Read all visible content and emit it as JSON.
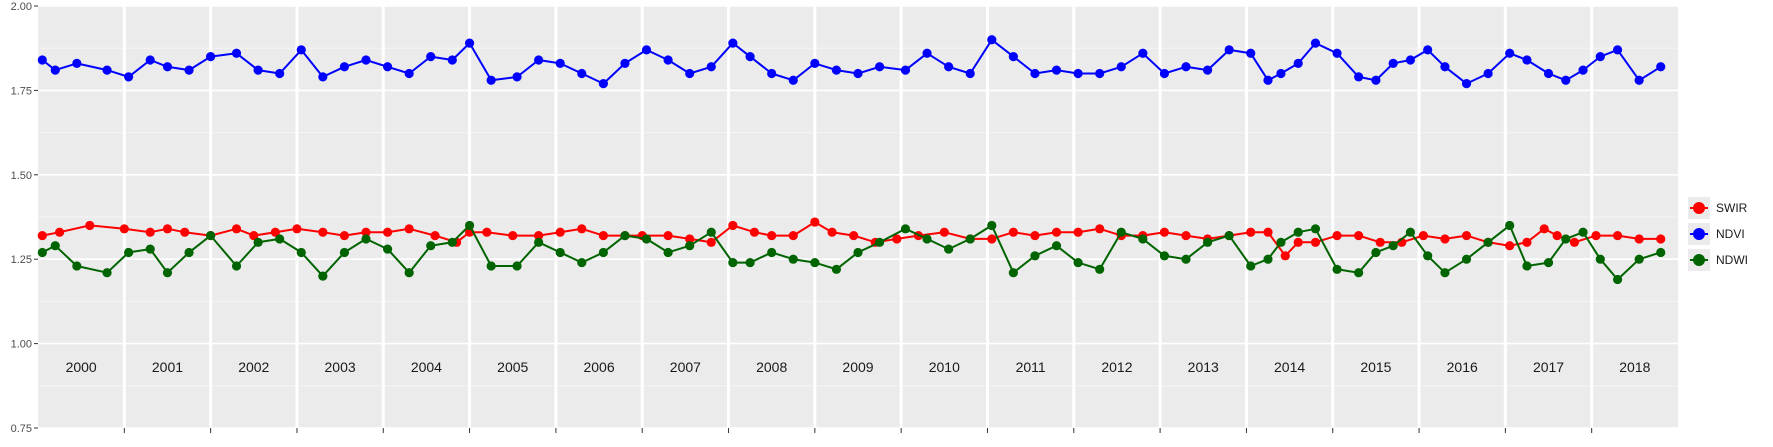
{
  "chart_data": {
    "type": "line",
    "title": "",
    "xlabel": "",
    "ylabel": "",
    "ylim": [
      0.75,
      2.0
    ],
    "yticks": [
      "0.75",
      "1.00",
      "1.25",
      "1.50",
      "1.75",
      "2.00"
    ],
    "ytick_values": [
      0.75,
      1.0,
      1.25,
      1.5,
      1.75,
      2.0
    ],
    "x_unit": "decimal year",
    "xlim": [
      2000.0,
      2019.0
    ],
    "year_panels": [
      "2000",
      "2001",
      "2002",
      "2003",
      "2004",
      "2005",
      "2006",
      "2007",
      "2008",
      "2009",
      "2010",
      "2011",
      "2012",
      "2013",
      "2014",
      "2015",
      "2016",
      "2017",
      "2018"
    ],
    "grid": true,
    "legend_position": "right",
    "series": [
      {
        "name": "SWIR",
        "color": "#ff0000",
        "x": [
          2000.05,
          2000.25,
          2000.6,
          2001.0,
          2001.3,
          2001.5,
          2001.7,
          2002.0,
          2002.3,
          2002.5,
          2002.75,
          2003.0,
          2003.3,
          2003.55,
          2003.8,
          2004.05,
          2004.3,
          2004.6,
          2004.85,
          2005.0,
          2005.2,
          2005.5,
          2005.8,
          2006.05,
          2006.3,
          2006.55,
          2006.8,
          2007.0,
          2007.3,
          2007.55,
          2007.8,
          2008.05,
          2008.3,
          2008.5,
          2008.75,
          2009.0,
          2009.2,
          2009.45,
          2009.7,
          2009.95,
          2010.2,
          2010.5,
          2010.8,
          2011.05,
          2011.3,
          2011.55,
          2011.8,
          2012.05,
          2012.3,
          2012.55,
          2012.8,
          2013.05,
          2013.3,
          2013.55,
          2013.8,
          2014.05,
          2014.25,
          2014.45,
          2014.6,
          2014.8,
          2015.05,
          2015.3,
          2015.55,
          2015.8,
          2016.05,
          2016.3,
          2016.55,
          2016.8,
          2017.05,
          2017.25,
          2017.45,
          2017.6,
          2017.8,
          2018.05,
          2018.3,
          2018.55,
          2018.8
        ],
        "values": [
          1.32,
          1.33,
          1.35,
          1.34,
          1.33,
          1.34,
          1.33,
          1.32,
          1.34,
          1.32,
          1.33,
          1.34,
          1.33,
          1.32,
          1.33,
          1.33,
          1.34,
          1.32,
          1.3,
          1.33,
          1.33,
          1.32,
          1.32,
          1.33,
          1.34,
          1.32,
          1.32,
          1.32,
          1.32,
          1.31,
          1.3,
          1.35,
          1.33,
          1.32,
          1.32,
          1.36,
          1.33,
          1.32,
          1.3,
          1.31,
          1.32,
          1.33,
          1.31,
          1.31,
          1.33,
          1.32,
          1.33,
          1.33,
          1.34,
          1.32,
          1.32,
          1.33,
          1.32,
          1.31,
          1.32,
          1.33,
          1.33,
          1.26,
          1.3,
          1.3,
          1.32,
          1.32,
          1.3,
          1.3,
          1.32,
          1.31,
          1.32,
          1.3,
          1.29,
          1.3,
          1.34,
          1.32,
          1.3,
          1.32,
          1.32,
          1.31,
          1.31
        ]
      },
      {
        "name": "NDVI",
        "color": "#0000ff",
        "x": [
          2000.05,
          2000.2,
          2000.45,
          2000.8,
          2001.05,
          2001.3,
          2001.5,
          2001.75,
          2002.0,
          2002.3,
          2002.55,
          2002.8,
          2003.05,
          2003.3,
          2003.55,
          2003.8,
          2004.05,
          2004.3,
          2004.55,
          2004.8,
          2005.0,
          2005.25,
          2005.55,
          2005.8,
          2006.05,
          2006.3,
          2006.55,
          2006.8,
          2007.05,
          2007.3,
          2007.55,
          2007.8,
          2008.05,
          2008.25,
          2008.5,
          2008.75,
          2009.0,
          2009.25,
          2009.5,
          2009.75,
          2010.05,
          2010.3,
          2010.55,
          2010.8,
          2011.05,
          2011.3,
          2011.55,
          2011.8,
          2012.05,
          2012.3,
          2012.55,
          2012.8,
          2013.05,
          2013.3,
          2013.55,
          2013.8,
          2014.05,
          2014.25,
          2014.4,
          2014.6,
          2014.8,
          2015.05,
          2015.3,
          2015.5,
          2015.7,
          2015.9,
          2016.1,
          2016.3,
          2016.55,
          2016.8,
          2017.05,
          2017.25,
          2017.5,
          2017.7,
          2017.9,
          2018.1,
          2018.3,
          2018.55,
          2018.8
        ],
        "values": [
          1.84,
          1.81,
          1.83,
          1.81,
          1.79,
          1.84,
          1.82,
          1.81,
          1.85,
          1.86,
          1.81,
          1.8,
          1.87,
          1.79,
          1.82,
          1.84,
          1.82,
          1.8,
          1.85,
          1.84,
          1.89,
          1.78,
          1.79,
          1.84,
          1.83,
          1.8,
          1.77,
          1.83,
          1.87,
          1.84,
          1.8,
          1.82,
          1.89,
          1.85,
          1.8,
          1.78,
          1.83,
          1.81,
          1.8,
          1.82,
          1.81,
          1.86,
          1.82,
          1.8,
          1.9,
          1.85,
          1.8,
          1.81,
          1.8,
          1.8,
          1.82,
          1.86,
          1.8,
          1.82,
          1.81,
          1.87,
          1.86,
          1.78,
          1.8,
          1.83,
          1.89,
          1.86,
          1.79,
          1.78,
          1.83,
          1.84,
          1.87,
          1.82,
          1.77,
          1.8,
          1.86,
          1.84,
          1.8,
          1.78,
          1.81,
          1.85,
          1.87,
          1.78,
          1.82
        ]
      },
      {
        "name": "NDWI",
        "color": "#006400",
        "x": [
          2000.05,
          2000.2,
          2000.45,
          2000.8,
          2001.05,
          2001.3,
          2001.5,
          2001.75,
          2002.0,
          2002.3,
          2002.55,
          2002.8,
          2003.05,
          2003.3,
          2003.55,
          2003.8,
          2004.05,
          2004.3,
          2004.55,
          2004.8,
          2005.0,
          2005.25,
          2005.55,
          2005.8,
          2006.05,
          2006.3,
          2006.55,
          2006.8,
          2007.05,
          2007.3,
          2007.55,
          2007.8,
          2008.05,
          2008.25,
          2008.5,
          2008.75,
          2009.0,
          2009.25,
          2009.5,
          2009.75,
          2010.05,
          2010.3,
          2010.55,
          2010.8,
          2011.05,
          2011.3,
          2011.55,
          2011.8,
          2012.05,
          2012.3,
          2012.55,
          2012.8,
          2013.05,
          2013.3,
          2013.55,
          2013.8,
          2014.05,
          2014.25,
          2014.4,
          2014.6,
          2014.8,
          2015.05,
          2015.3,
          2015.5,
          2015.7,
          2015.9,
          2016.1,
          2016.3,
          2016.55,
          2016.8,
          2017.05,
          2017.25,
          2017.5,
          2017.7,
          2017.9,
          2018.1,
          2018.3,
          2018.55,
          2018.8
        ],
        "values": [
          1.27,
          1.29,
          1.23,
          1.21,
          1.27,
          1.28,
          1.21,
          1.27,
          1.32,
          1.23,
          1.3,
          1.31,
          1.27,
          1.2,
          1.27,
          1.31,
          1.28,
          1.21,
          1.29,
          1.3,
          1.35,
          1.23,
          1.23,
          1.3,
          1.27,
          1.24,
          1.27,
          1.32,
          1.31,
          1.27,
          1.29,
          1.33,
          1.24,
          1.24,
          1.27,
          1.25,
          1.24,
          1.22,
          1.27,
          1.3,
          1.34,
          1.31,
          1.28,
          1.31,
          1.35,
          1.21,
          1.26,
          1.29,
          1.24,
          1.22,
          1.33,
          1.31,
          1.26,
          1.25,
          1.3,
          1.32,
          1.23,
          1.25,
          1.3,
          1.33,
          1.34,
          1.22,
          1.21,
          1.27,
          1.29,
          1.33,
          1.26,
          1.21,
          1.25,
          1.3,
          1.35,
          1.23,
          1.24,
          1.31,
          1.33,
          1.25,
          1.19,
          1.25,
          1.27
        ]
      }
    ]
  }
}
